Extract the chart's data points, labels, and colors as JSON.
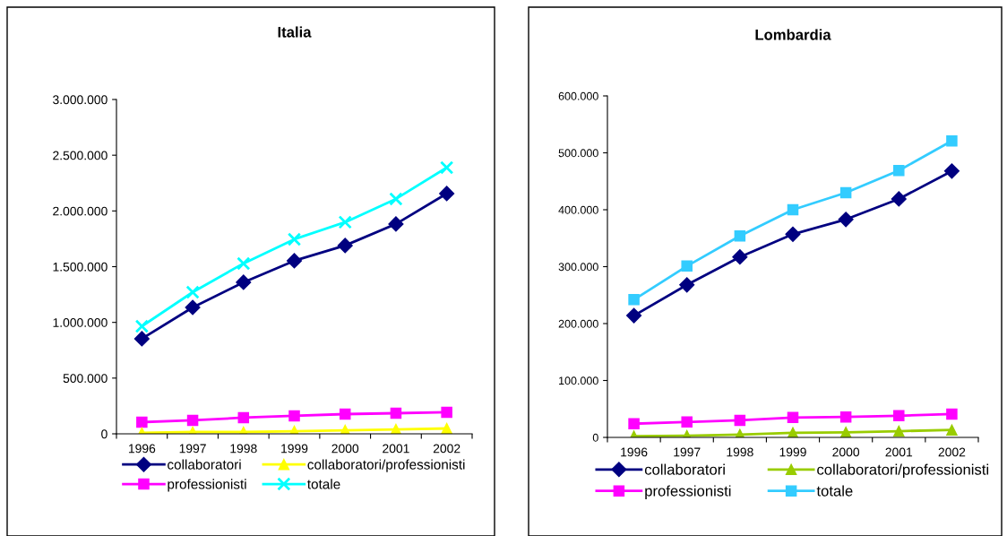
{
  "chart_data": [
    {
      "type": "line",
      "title": "Italia",
      "categories": [
        "1996",
        "1997",
        "1998",
        "1999",
        "2000",
        "2001",
        "2002"
      ],
      "ylim": [
        0,
        3000000
      ],
      "yticks": [
        0,
        {
          "value": 500000,
          "label": "500.000"
        },
        {
          "value": 1000000,
          "label": "1.000.000"
        },
        {
          "value": 1500000,
          "label": "1.500.000"
        },
        {
          "value": 2000000,
          "label": "2.000.000"
        },
        {
          "value": 2500000,
          "label": "2.500.000"
        },
        {
          "value": 3000000,
          "label": "3.000.000"
        }
      ],
      "grid": false,
      "legend": "bottom",
      "line_style": "solid",
      "series": [
        {
          "name": "collaboratori",
          "color": "#000080",
          "marker": "diamond",
          "values": [
            853000,
            1134000,
            1360000,
            1553000,
            1690000,
            1883000,
            2156000
          ]
        },
        {
          "name": "professionisti",
          "color": "#ff00ff",
          "marker": "square",
          "values": [
            105000,
            121000,
            145000,
            161000,
            177000,
            185000,
            193000
          ]
        },
        {
          "name": "collaboratori/professionisti",
          "color": "#ffff00",
          "marker": "triangle",
          "values": [
            8000,
            16000,
            16000,
            24000,
            32000,
            40000,
            48000
          ]
        },
        {
          "name": "totale",
          "color": "#00ffff",
          "marker": "cross",
          "values": [
            965000,
            1271000,
            1529000,
            1746000,
            1899000,
            2108000,
            2389000
          ]
        }
      ]
    },
    {
      "type": "line",
      "title": "Lombardia",
      "categories": [
        "1996",
        "1997",
        "1998",
        "1999",
        "2000",
        "2001",
        "2002"
      ],
      "ylim": [
        0,
        600000
      ],
      "yticks": [
        0,
        {
          "value": 100000,
          "label": "100.000"
        },
        {
          "value": 200000,
          "label": "200.000"
        },
        {
          "value": 300000,
          "label": "300.000"
        },
        {
          "value": 400000,
          "label": "400.000"
        },
        {
          "value": 500000,
          "label": "500.000"
        },
        {
          "value": 600000,
          "label": "600.000"
        }
      ],
      "grid": false,
      "legend": "bottom",
      "line_style": "solid",
      "series": [
        {
          "name": "collaboratori",
          "color": "#000080",
          "marker": "diamond",
          "values": [
            214000,
            268000,
            317000,
            357000,
            383000,
            419000,
            468000
          ]
        },
        {
          "name": "professionisti",
          "color": "#ff00ff",
          "marker": "square",
          "values": [
            24000,
            27000,
            30000,
            35000,
            36000,
            38000,
            41000
          ]
        },
        {
          "name": "collaboratori/professionisti",
          "color": "#99cc00",
          "marker": "triangle",
          "values": [
            2000,
            3000,
            5000,
            8000,
            9000,
            11000,
            13000
          ]
        },
        {
          "name": "totale",
          "color": "#33ccff",
          "marker": "square",
          "values": [
            242000,
            301000,
            354000,
            400000,
            430000,
            469000,
            521000
          ]
        }
      ]
    }
  ]
}
